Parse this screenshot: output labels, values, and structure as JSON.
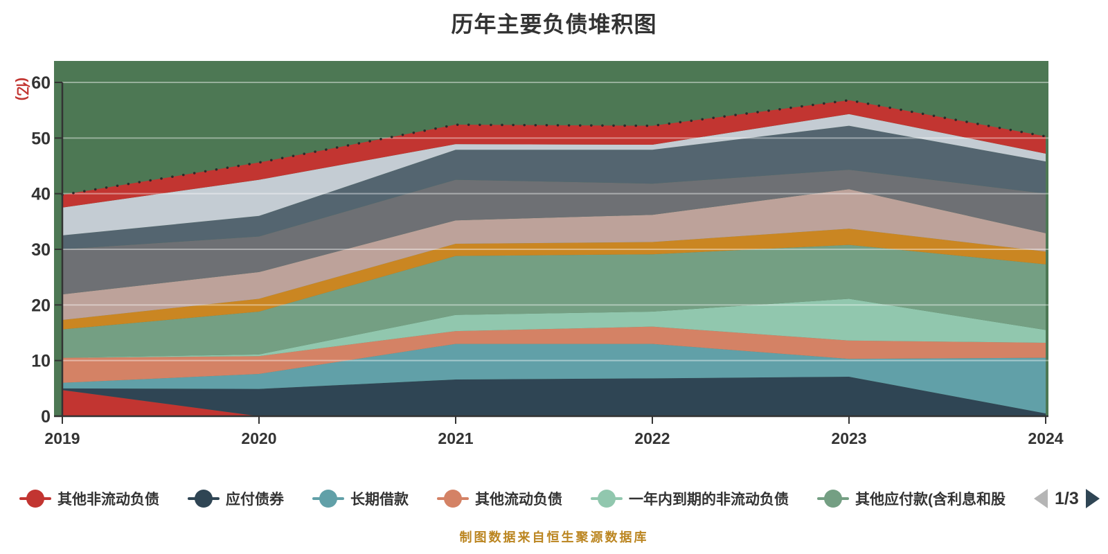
{
  "title": "历年主要负债堆积图",
  "y_axis": {
    "name": "(亿)",
    "name_color": "#c23531",
    "ticks": [
      0,
      10,
      20,
      30,
      40,
      50,
      60
    ],
    "min": 0,
    "max": 60
  },
  "x_axis": {
    "categories": [
      "2019",
      "2020",
      "2021",
      "2022",
      "2023",
      "2024"
    ]
  },
  "legend": {
    "visible_items": [
      {
        "label": "其他非流动负债",
        "color": "#c23531"
      },
      {
        "label": "应付债券",
        "color": "#2f4554"
      },
      {
        "label": "长期借款",
        "color": "#61a0a8"
      },
      {
        "label": "其他流动负债",
        "color": "#d48265"
      },
      {
        "label": "一年内到期的非流动负债",
        "color": "#91c7ae"
      },
      {
        "label": "其他应付款(含利息和股",
        "color": "#749f83"
      }
    ],
    "pager": {
      "current_page": "1/3",
      "prev_enabled": false,
      "next_enabled": true,
      "prev_color": "#b5b5b5",
      "next_color": "#2f4554"
    }
  },
  "footer": {
    "credit": "制图数据来自恒生聚源数据库",
    "color": "#bb8520"
  },
  "chart_data": {
    "type": "area",
    "stacked": true,
    "title": "历年主要负债堆积图",
    "ylabel": "(亿)",
    "ylim": [
      0,
      60
    ],
    "grid": true,
    "plot_background": "#4d7854",
    "gridline_color": "rgba(255,255,255,0.42)",
    "axis_color": "#333333",
    "top_edge_dotted_color": "#2b2b2b",
    "x": [
      "2019",
      "2020",
      "2021",
      "2022",
      "2023",
      "2024"
    ],
    "series": [
      {
        "name": "其他非流动负债",
        "color": "#c23531",
        "values": [
          4.7,
          0,
          0,
          0,
          0,
          0
        ]
      },
      {
        "name": "应付债券",
        "color": "#2f4554",
        "values": [
          0.3,
          4.9,
          6.6,
          6.8,
          7.1,
          0.5
        ]
      },
      {
        "name": "长期借款",
        "color": "#61a0a8",
        "values": [
          1.0,
          2.7,
          6.4,
          6.2,
          3.2,
          10.0
        ]
      },
      {
        "name": "其他流动负债",
        "color": "#d48265",
        "values": [
          4.5,
          3.2,
          2.3,
          3.1,
          3.3,
          2.7
        ]
      },
      {
        "name": "一年内到期的非流动负债",
        "color": "#91c7ae",
        "values": [
          0,
          0.3,
          2.9,
          2.7,
          7.5,
          2.3
        ]
      },
      {
        "name": "其他应付款(含利息和股",
        "color": "#749f83",
        "values": [
          5.1,
          7.7,
          10.6,
          10.3,
          9.7,
          11.8
        ]
      },
      {
        "name": "series-7-legend-page-2",
        "color": "#ca8622",
        "values": [
          1.7,
          2.3,
          2.2,
          2.2,
          2.9,
          2.3
        ]
      },
      {
        "name": "series-8-legend-page-2",
        "color": "#bda29a",
        "values": [
          4.6,
          4.8,
          4.2,
          4.9,
          7.1,
          3.3
        ]
      },
      {
        "name": "series-9-legend-page-2",
        "color": "#6e7074",
        "values": [
          8.1,
          6.4,
          7.3,
          5.6,
          3.5,
          7.1
        ]
      },
      {
        "name": "series-10-legend-page-2",
        "color": "#546570",
        "values": [
          2.5,
          3.7,
          5.4,
          6.1,
          7.9,
          5.8
        ]
      },
      {
        "name": "series-11-legend-page-2",
        "color": "#c4ccd3",
        "values": [
          5.0,
          6.5,
          1.0,
          0.9,
          2.1,
          1.4
        ]
      },
      {
        "name": "series-12-legend-page-2",
        "color": "#c23531",
        "values": [
          2.3,
          3.1,
          3.5,
          3.4,
          2.5,
          3.1
        ]
      }
    ],
    "totals": [
      39.8,
      45.6,
      52.4,
      52.2,
      56.8,
      50.3
    ]
  }
}
